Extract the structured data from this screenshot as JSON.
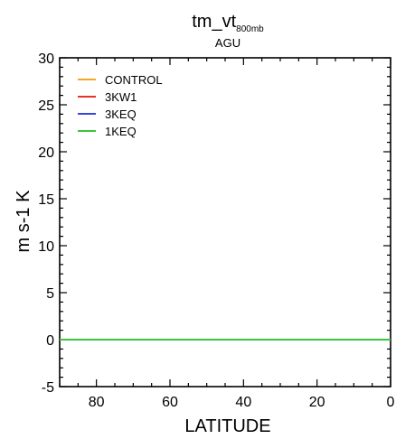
{
  "chart_data": {
    "type": "line",
    "title": {
      "main": "tm_vt",
      "subscript": "800mb"
    },
    "subtitle": "AGU",
    "xlabel": "LATITUDE",
    "ylabel": "m s-1 K",
    "xlim": [
      90,
      0
    ],
    "ylim": [
      -5,
      30
    ],
    "xticks": [
      80,
      60,
      40,
      20,
      0
    ],
    "xtick_labels": [
      "80",
      "60",
      "40",
      "20",
      "0"
    ],
    "x_minor_step": 5,
    "yticks": [
      -5,
      0,
      5,
      10,
      15,
      20,
      25,
      30
    ],
    "ytick_labels": [
      "-5",
      "0",
      "5",
      "10",
      "15",
      "20",
      "25",
      "30"
    ],
    "y_minor_step": 1,
    "grid": false,
    "legend_position": "top-left",
    "x": [
      90,
      80,
      70,
      60,
      50,
      40,
      30,
      20,
      10,
      0
    ],
    "series": [
      {
        "name": "CONTROL",
        "color": "#f5a623",
        "values": [
          0,
          0,
          0,
          0,
          0,
          0,
          0,
          0,
          0,
          0
        ]
      },
      {
        "name": "3KW1",
        "color": "#e8302a",
        "values": [
          0,
          0,
          0,
          0,
          0,
          0,
          0,
          0,
          0,
          0
        ]
      },
      {
        "name": "3KEQ",
        "color": "#3a45e0",
        "values": [
          0,
          0,
          0,
          0,
          0,
          0,
          0,
          0,
          0,
          0
        ]
      },
      {
        "name": "1KEQ",
        "color": "#3cc43c",
        "values": [
          0,
          0,
          0,
          0,
          0,
          0,
          0,
          0,
          0,
          0
        ]
      }
    ]
  }
}
